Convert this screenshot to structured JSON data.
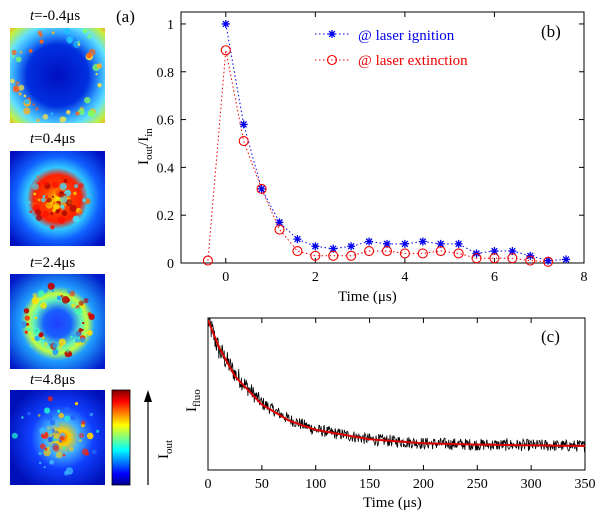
{
  "panel_a": {
    "label": "(a)",
    "frames": [
      {
        "t": "-0.4",
        "unit": "μs",
        "pattern": "ring-dark"
      },
      {
        "t": "0.4",
        "unit": "μs",
        "pattern": "center-bright"
      },
      {
        "t": "2.4",
        "unit": "μs",
        "pattern": "ring-bright"
      },
      {
        "t": "4.8",
        "unit": "μs",
        "pattern": "sparse-center"
      }
    ],
    "colorbar": {
      "label_main": "I",
      "label_sub": "out",
      "cmap": "jet"
    }
  },
  "chart_data": [
    {
      "panel": "(b)",
      "type": "scatter",
      "xlabel": "Time (μs)",
      "ylabel_main": "I",
      "ylabel_sub1": "out",
      "ylabel_mid": "/I",
      "ylabel_sub2": "in",
      "xlim": [
        -1,
        8
      ],
      "ylim": [
        0,
        1.05
      ],
      "xticks": [
        0,
        2,
        4,
        6,
        8
      ],
      "yticks": [
        0,
        0.2,
        0.4,
        0.6,
        0.8,
        1
      ],
      "ytick_labels": [
        "0",
        "0.2",
        "0.4",
        "0.6",
        "0.8",
        "1"
      ],
      "legend_position": "top-right",
      "series": [
        {
          "name": "@ laser ignition",
          "marker": "star",
          "color": "#0000ee",
          "line": "dotted",
          "x": [
            0,
            0.4,
            0.8,
            1.2,
            1.6,
            2.0,
            2.4,
            2.8,
            3.2,
            3.6,
            4.0,
            4.4,
            4.8,
            5.2,
            5.6,
            6.0,
            6.4,
            6.8,
            7.2,
            7.6
          ],
          "y": [
            1.0,
            0.58,
            0.31,
            0.17,
            0.1,
            0.07,
            0.06,
            0.07,
            0.09,
            0.08,
            0.08,
            0.09,
            0.08,
            0.08,
            0.04,
            0.05,
            0.05,
            0.03,
            0.01,
            0.015
          ]
        },
        {
          "name": "@ laser extinction",
          "marker": "circle",
          "color": "#ee0000",
          "line": "dotted",
          "x": [
            -0.4,
            0,
            0.4,
            0.8,
            1.2,
            1.6,
            2.0,
            2.4,
            2.8,
            3.2,
            3.6,
            4.0,
            4.4,
            4.8,
            5.2,
            5.6,
            6.0,
            6.4,
            6.8,
            7.2
          ],
          "y": [
            0.01,
            0.89,
            0.51,
            0.31,
            0.14,
            0.05,
            0.03,
            0.03,
            0.03,
            0.05,
            0.05,
            0.04,
            0.04,
            0.05,
            0.04,
            0.02,
            0.02,
            0.02,
            0.01,
            0.005
          ]
        }
      ]
    },
    {
      "panel": "(c)",
      "type": "line",
      "xlabel": "Time (μs)",
      "ylabel_main": "I",
      "ylabel_sub": "fluo",
      "xlim": [
        0,
        350
      ],
      "xticks": [
        0,
        50,
        100,
        150,
        200,
        250,
        300,
        350
      ],
      "series": [
        {
          "name": "",
          "color": "#000000",
          "kind": "noisy-data",
          "x": [
            0,
            10,
            25,
            50,
            75,
            100,
            150,
            200,
            250,
            300,
            350
          ],
          "y": [
            1.0,
            0.78,
            0.6,
            0.38,
            0.26,
            0.18,
            0.11,
            0.08,
            0.07,
            0.065,
            0.06
          ]
        },
        {
          "name": "",
          "color": "#dd0000",
          "kind": "exponential-fit",
          "x": [
            0,
            10,
            25,
            50,
            75,
            100,
            150,
            200,
            250,
            300,
            350
          ],
          "y": [
            1.0,
            0.8,
            0.58,
            0.37,
            0.25,
            0.18,
            0.11,
            0.08,
            0.07,
            0.065,
            0.06
          ]
        }
      ]
    }
  ]
}
